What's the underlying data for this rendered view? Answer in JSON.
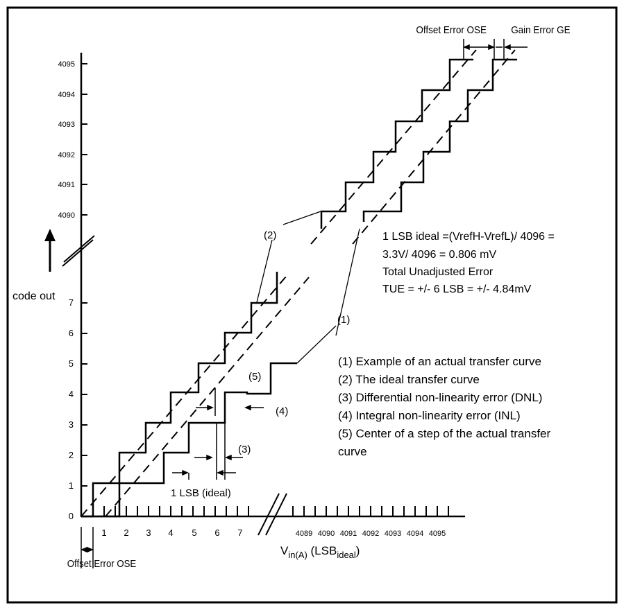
{
  "diagram": {
    "offset_error_top": "Offset Error OSE",
    "gain_error_top": "Gain Error GE",
    "offset_error_bottom": "Offset Error OSE",
    "code_out": "code out",
    "y_ticks_low": [
      "0",
      "1",
      "2",
      "3",
      "4",
      "5",
      "6",
      "7"
    ],
    "y_ticks_high": [
      "4090",
      "4091",
      "4092",
      "4093",
      "4094",
      "4095"
    ],
    "x_ticks_low": [
      "1",
      "2",
      "3",
      "4",
      "5",
      "6",
      "7"
    ],
    "x_ticks_high": [
      "4089",
      "4090",
      "4091",
      "4092",
      "4093",
      "4094",
      "4095"
    ],
    "x_label_main": "V",
    "x_label_sub": "in(A)",
    "x_label_paren_open": " (LSB",
    "x_label_sub2": "ideal",
    "x_label_paren_close": ")",
    "one_lsb_ideal": "1 LSB (ideal)",
    "callouts": {
      "c1": "(1)",
      "c2": "(2)",
      "c3": "(3)",
      "c4": "(4)",
      "c5": "(5)"
    },
    "info_lines": [
      "1 LSB ideal =(VrefH-VrefL)/ 4096 =",
      "3.3V/ 4096 = 0.806 mV",
      "Total Unadjusted Error",
      "TUE = +/- 6 LSB = +/- 4.84mV"
    ],
    "legend_lines": [
      "(1) Example of an actual transfer curve",
      "(2) The ideal transfer curve",
      "(3) Differential non-linearity error (DNL)",
      "(4) Integral non-linearity error (INL)",
      "(5) Center of a step of the actual transfer",
      "curve"
    ]
  }
}
